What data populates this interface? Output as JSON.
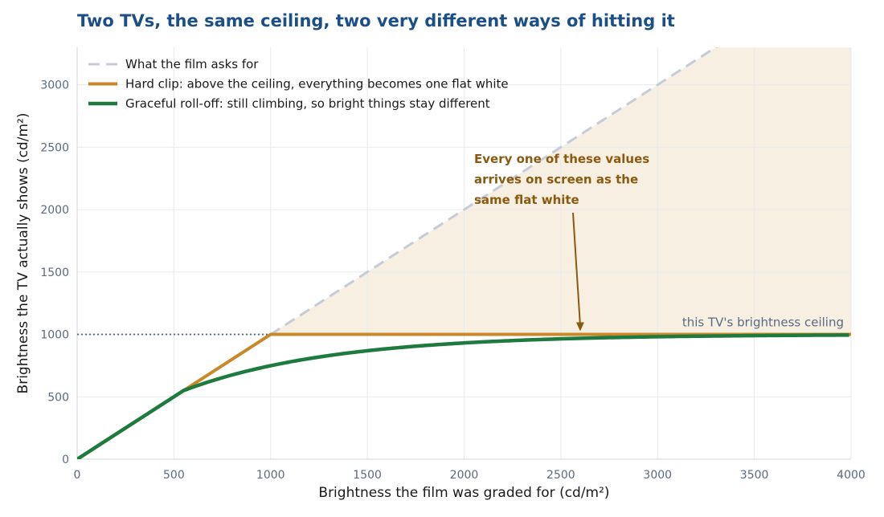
{
  "chart_data": {
    "type": "line",
    "title": "Two TVs, the same ceiling, two very different ways of hitting it",
    "xlabel": "Brightness the film was graded for (cd/m²)",
    "ylabel": "Brightness the TV actually shows (cd/m²)",
    "xlim": [
      0,
      4000
    ],
    "ylim": [
      0,
      3300
    ],
    "x_ticks": [
      0,
      500,
      1000,
      1500,
      2000,
      2500,
      3000,
      3500,
      4000
    ],
    "y_ticks": [
      0,
      500,
      1000,
      1500,
      2000,
      2500,
      3000
    ],
    "grid": true,
    "legend_position": "top-left",
    "ceiling": {
      "value": 1000,
      "label": "this TV's brightness ceiling",
      "color": "#5a6a80"
    },
    "series": [
      {
        "name": "What the film asks for",
        "style": "dashed",
        "color": "#c5cbd8",
        "x": [
          0,
          4000
        ],
        "y": [
          0,
          4000
        ]
      },
      {
        "name": "Hard clip: above the ceiling, everything becomes one flat white",
        "style": "solid",
        "color": "#c8892a",
        "x": [
          0,
          1000,
          4000
        ],
        "y": [
          0,
          1000,
          1000
        ]
      },
      {
        "name": "Graceful roll-off: still climbing, so bright things stay different",
        "style": "solid",
        "color": "#1e7a3e",
        "x": [
          0,
          550,
          1000,
          1500,
          2000,
          2500,
          3000,
          3500,
          4000
        ],
        "y": [
          0,
          550,
          694,
          796,
          866,
          913,
          945,
          966,
          976
        ]
      }
    ],
    "shaded_region": {
      "description": "area between requested brightness and the ceiling above 1000",
      "color": "#f7efe2"
    },
    "annotation": {
      "lines": [
        "Every one of these values",
        "arrives on screen as the",
        "same flat white"
      ],
      "arrow_to": [
        2600,
        1000
      ]
    }
  }
}
